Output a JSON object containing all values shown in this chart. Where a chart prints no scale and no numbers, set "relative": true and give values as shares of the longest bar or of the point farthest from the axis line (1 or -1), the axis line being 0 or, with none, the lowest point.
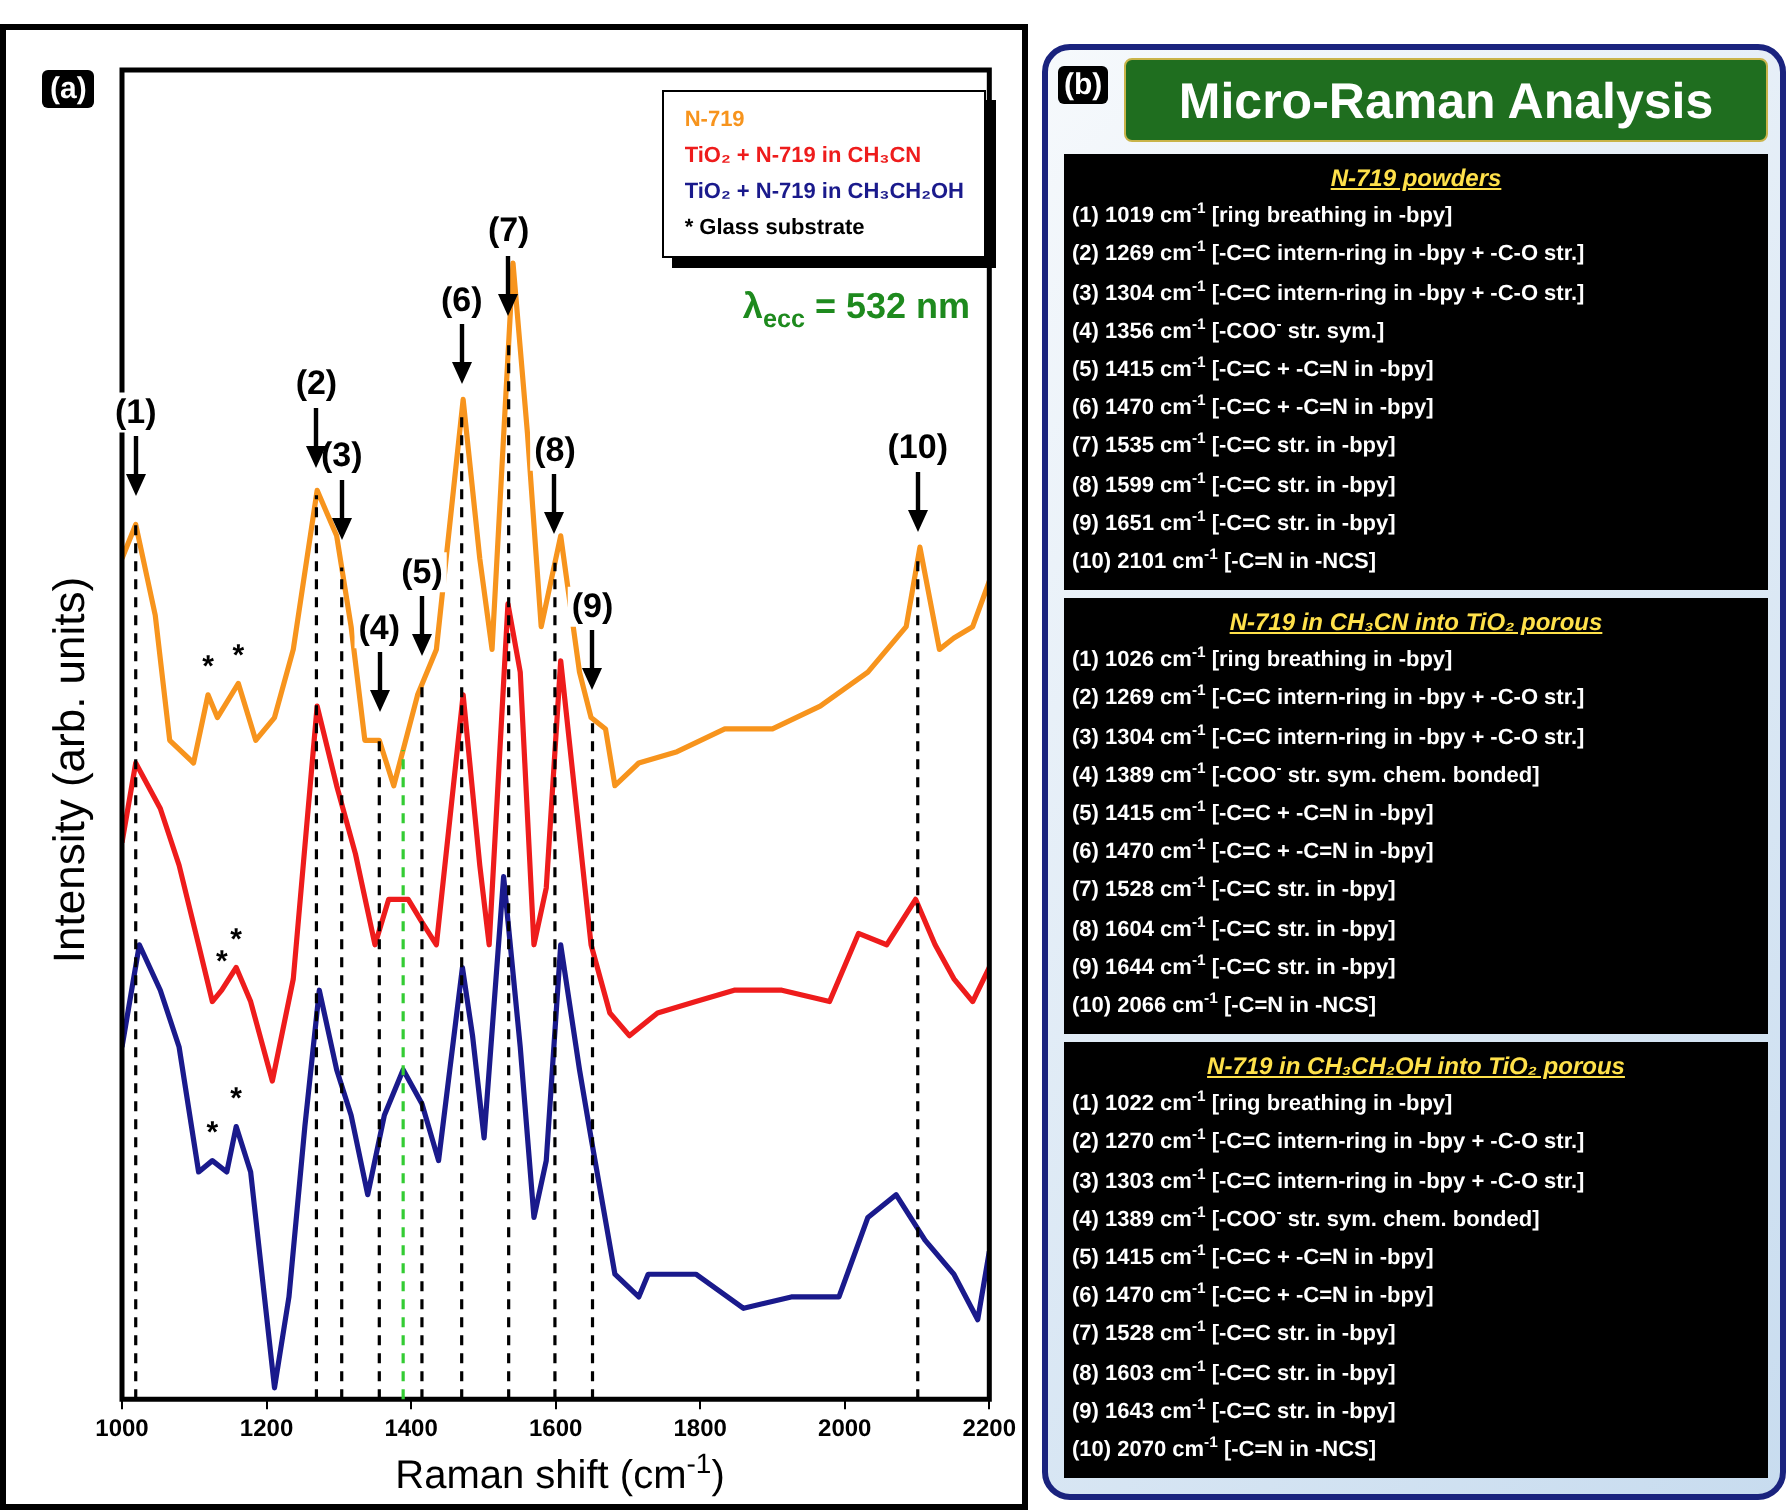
{
  "chart_data": [
    {
      "type": "line",
      "relative": true,
      "xlabel": "Raman shift (cm$^{-1}$)",
      "ylabel": "Intensity (arb. units)",
      "xlim": [
        1000,
        2200
      ],
      "xticks": [
        1000,
        1200,
        1400,
        1600,
        1800,
        2000,
        2200
      ],
      "grid": false,
      "marker": "none",
      "legend": "top right",
      "series": [
        {
          "name": "N-719",
          "color": "#f7941d",
          "x": [
            1000,
            1019,
            1046,
            1066,
            1099,
            1119,
            1132,
            1161,
            1185,
            1211,
            1237,
            1270,
            1297,
            1317,
            1336,
            1356,
            1376,
            1409,
            1435,
            1472,
            1495,
            1512,
            1541,
            1561,
            1580,
            1607,
            1633,
            1649,
            1669,
            1682,
            1715,
            1768,
            1834,
            1900,
            1966,
            2032,
            2085,
            2104,
            2131,
            2151,
            2177,
            2200
          ],
          "values": [
            0.74,
            0.77,
            0.69,
            0.58,
            0.56,
            0.62,
            0.6,
            0.63,
            0.58,
            0.6,
            0.66,
            0.8,
            0.76,
            0.68,
            0.58,
            0.58,
            0.54,
            0.62,
            0.66,
            0.88,
            0.74,
            0.66,
            1,
            0.85,
            0.68,
            0.76,
            0.64,
            0.6,
            0.59,
            0.54,
            0.56,
            0.57,
            0.59,
            0.59,
            0.61,
            0.64,
            0.68,
            0.75,
            0.66,
            0.67,
            0.68,
            0.72
          ]
        },
        {
          "name": "TiO₂ + N-719 in CH₃CN",
          "color": "#ee1c1c",
          "x": [
            1000,
            1019,
            1053,
            1079,
            1106,
            1125,
            1138,
            1158,
            1178,
            1208,
            1237,
            1270,
            1297,
            1323,
            1350,
            1369,
            1396,
            1415,
            1435,
            1472,
            1495,
            1508,
            1534,
            1551,
            1570,
            1587,
            1607,
            1649,
            1675,
            1702,
            1741,
            1794,
            1847,
            1913,
            1979,
            2019,
            2058,
            2098,
            2125,
            2151,
            2177,
            2200
          ],
          "values": [
            0.49,
            0.56,
            0.52,
            0.47,
            0.4,
            0.35,
            0.36,
            0.38,
            0.35,
            0.28,
            0.37,
            0.61,
            0.54,
            0.48,
            0.4,
            0.44,
            0.44,
            0.42,
            0.4,
            0.62,
            0.47,
            0.4,
            0.7,
            0.64,
            0.4,
            0.45,
            0.65,
            0.4,
            0.34,
            0.32,
            0.34,
            0.35,
            0.36,
            0.36,
            0.35,
            0.41,
            0.4,
            0.44,
            0.4,
            0.37,
            0.35,
            0.38
          ]
        },
        {
          "name": "TiO₂ + N-719 in CH₃CH₂OH",
          "color": "#1a1a8c",
          "x": [
            1000,
            1024,
            1053,
            1079,
            1106,
            1125,
            1145,
            1158,
            1178,
            1211,
            1231,
            1253,
            1273,
            1297,
            1317,
            1340,
            1363,
            1389,
            1415,
            1438,
            1471,
            1485,
            1501,
            1528,
            1551,
            1570,
            1587,
            1607,
            1633,
            1649,
            1682,
            1715,
            1728,
            1794,
            1860,
            1926,
            1992,
            2032,
            2071,
            2111,
            2151,
            2184,
            2200
          ],
          "values": [
            0.31,
            0.4,
            0.36,
            0.31,
            0.2,
            0.21,
            0.2,
            0.24,
            0.2,
            0.01,
            0.09,
            0.24,
            0.36,
            0.29,
            0.25,
            0.18,
            0.25,
            0.29,
            0.26,
            0.21,
            0.38,
            0.32,
            0.23,
            0.46,
            0.31,
            0.16,
            0.21,
            0.4,
            0.29,
            0.23,
            0.11,
            0.09,
            0.11,
            0.11,
            0.08,
            0.09,
            0.09,
            0.16,
            0.18,
            0.14,
            0.11,
            0.07,
            0.13
          ]
        }
      ],
      "ref_lines": [
        {
          "axis": "x",
          "value": 1019,
          "color": "#000000",
          "line_style": "dashed"
        },
        {
          "axis": "x",
          "value": 1269,
          "color": "#000000",
          "line_style": "dashed"
        },
        {
          "axis": "x",
          "value": 1304,
          "color": "#000000",
          "line_style": "dashed"
        },
        {
          "axis": "x",
          "value": 1356,
          "color": "#000000",
          "line_style": "dashed"
        },
        {
          "axis": "x",
          "value": 1415,
          "color": "#000000",
          "line_style": "dashed"
        },
        {
          "axis": "x",
          "value": 1470,
          "color": "#000000",
          "line_style": "dashed"
        },
        {
          "axis": "x",
          "value": 1535,
          "color": "#000000",
          "line_style": "dashed"
        },
        {
          "axis": "x",
          "value": 1599,
          "color": "#000000",
          "line_style": "dashed"
        },
        {
          "axis": "x",
          "value": 1651,
          "color": "#000000",
          "line_style": "dashed"
        },
        {
          "axis": "x",
          "value": 2101,
          "color": "#000000",
          "line_style": "dashed"
        },
        {
          "axis": "x",
          "value": 1389,
          "color": "#33cc33",
          "line_style": "dashed"
        }
      ],
      "annotations": [
        "(a)",
        "* Glass substrate",
        "λ$_{ecc}$ = 532 nm",
        {
          "text": "(1)",
          "x": 1019
        },
        {
          "text": "(2)",
          "x": 1269
        },
        {
          "text": "(3)",
          "x": 1304
        },
        {
          "text": "(4)",
          "x": 1356
        },
        {
          "text": "(5)",
          "x": 1415
        },
        {
          "text": "(6)",
          "x": 1470
        },
        {
          "text": "(7)",
          "x": 1535
        },
        {
          "text": "(8)",
          "x": 1599
        },
        {
          "text": "(9)",
          "x": 1651
        },
        {
          "text": "(10)",
          "x": 2101
        },
        {
          "text": "*",
          "x": 1119,
          "y": 0.62
        },
        {
          "text": "*",
          "x": 1161,
          "y": 0.63
        },
        {
          "text": "*",
          "x": 1138,
          "y": 0.36
        },
        {
          "text": "*",
          "x": 1158,
          "y": 0.38
        },
        {
          "text": "*",
          "x": 1125,
          "y": 0.21
        },
        {
          "text": "*",
          "x": 1158,
          "y": 0.24
        }
      ]
    },
    {
      "type": "other",
      "title": "Micro-Raman Analysis",
      "annotations": [
        "(b)",
        "N-719 powders",
        "(1) 1019 cm$^{-1}$ [ring breathing in -bpy]",
        "(2) 1269 cm$^{-1}$ [-C=C intern-ring in -bpy + -C-O str.]",
        "(3) 1304 cm$^{-1}$ [-C=C intern-ring in -bpy + -C-O str.]",
        "(4) 1356 cm$^{-1}$ [-COO$^{-}$ str. sym.]",
        "(5) 1415 cm$^{-1}$ [-C=C + -C=N in -bpy]",
        "(6) 1470 cm$^{-1}$ [-C=C + -C=N in -bpy]",
        "(7) 1535 cm$^{-1}$ [-C=C str. in -bpy]",
        "(8) 1599 cm$^{-1}$ [-C=C str. in -bpy]",
        "(9) 1651 cm$^{-1}$ [-C=C str. in -bpy]",
        "(10) 2101 cm$^{-1}$ [-C=N in -NCS]",
        "N-719 in CH₃CN into TiO₂ porous",
        "(1) 1026 cm$^{-1}$ [ring breathing in -bpy]",
        "(2) 1269 cm$^{-1}$ [-C=C intern-ring in -bpy + -C-O str.]",
        "(3) 1304 cm$^{-1}$ [-C=C intern-ring in -bpy + -C-O str.]",
        "(4) 1389 cm$^{-1}$ [-COO$^{-}$ str. sym. chem. bonded]",
        "(5) 1415 cm$^{-1}$ [-C=C + -C=N in -bpy]",
        "(6) 1470 cm$^{-1}$ [-C=C + -C=N in -bpy]",
        "(7) 1528 cm$^{-1}$ [-C=C str. in -bpy]",
        "(8) 1604 cm$^{-1}$ [-C=C str. in -bpy]",
        "(9) 1644 cm$^{-1}$ [-C=C str. in -bpy]",
        "(10) 2066 cm$^{-1}$ [-C=N in -NCS]",
        "N-719 in CH₃CH₂OH into TiO₂ porous",
        "(1) 1022 cm$^{-1}$ [ring breathing in -bpy]",
        "(2) 1270 cm$^{-1}$ [-C=C intern-ring in -bpy + -C-O str.]",
        "(3) 1303 cm$^{-1}$ [-C=C intern-ring in -bpy + -C-O str.]",
        "(4) 1389 cm$^{-1}$ [-COO$^{-}$ str. sym. chem. bonded]",
        "(5) 1415 cm$^{-1}$ [-C=C + -C=N in -bpy]",
        "(6) 1470 cm$^{-1}$ [-C=C + -C=N in -bpy]",
        "(7) 1528 cm$^{-1}$ [-C=C str. in -bpy]",
        "(8) 1603 cm$^{-1}$ [-C=C str. in -bpy]",
        "(9) 1643 cm$^{-1}$ [-C=C str. in -bpy]",
        "(10) 2070 cm$^{-1}$ [-C=N in -NCS]"
      ]
    }
  ]
}
